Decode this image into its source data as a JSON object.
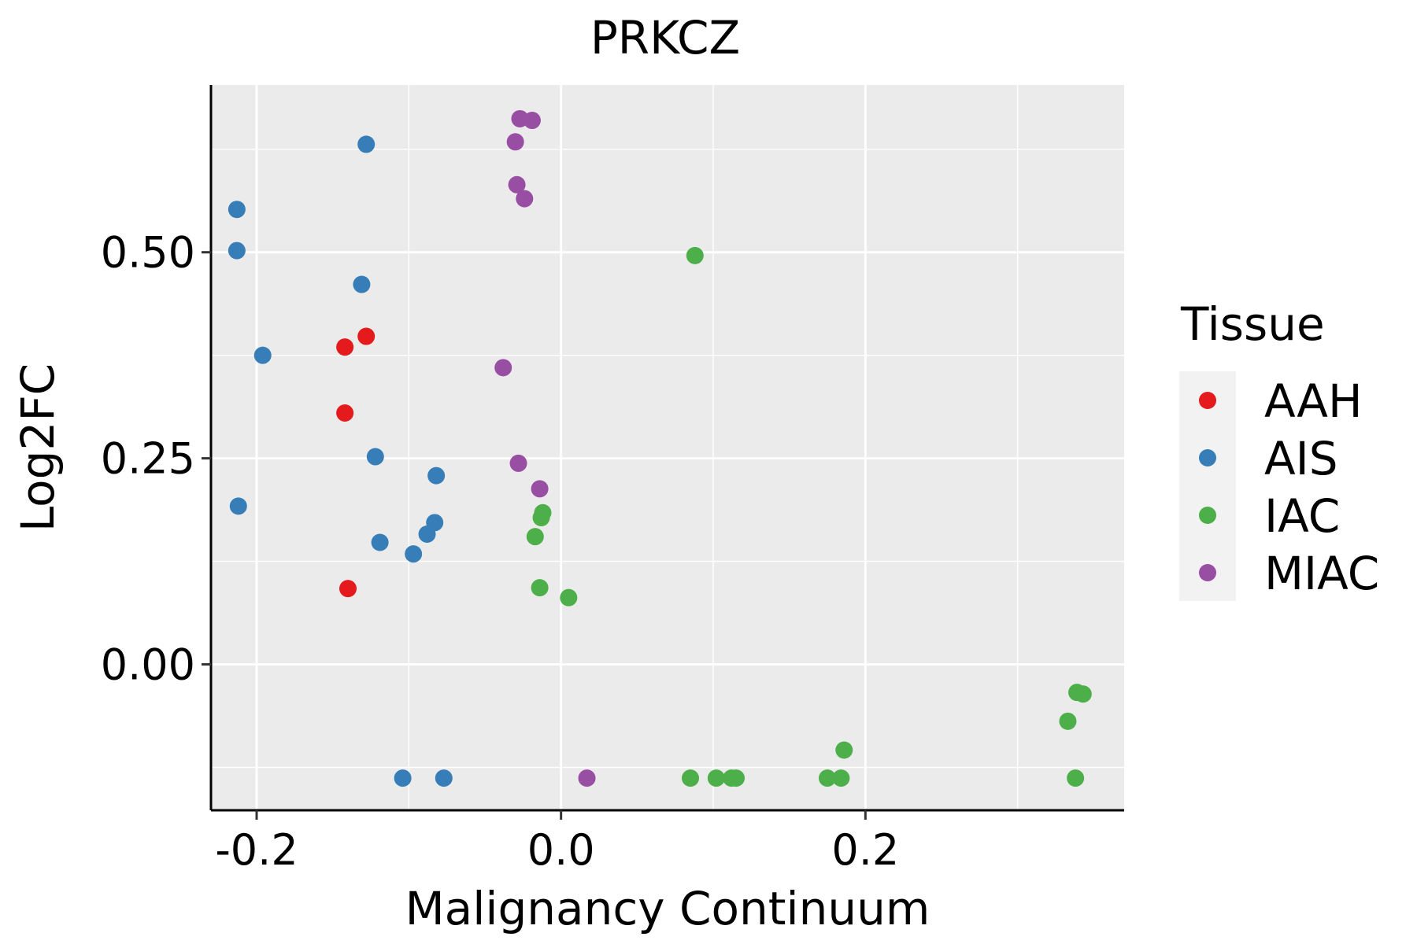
{
  "chart_data": {
    "type": "scatter",
    "title": "PRKCZ",
    "xlabel": "Malignancy Continuum",
    "ylabel": "Log2FC",
    "xlim": [
      -0.23,
      0.37
    ],
    "ylim": [
      -0.177,
      0.703
    ],
    "x_ticks": [
      -0.2,
      0.0,
      0.2
    ],
    "x_tick_labels": [
      "-0.2",
      "0.0",
      "0.2"
    ],
    "y_ticks": [
      0.0,
      0.25,
      0.5
    ],
    "y_tick_labels": [
      "0.00",
      "0.25",
      "0.50"
    ],
    "grid": true,
    "legend": {
      "title": "Tissue",
      "position": "right"
    },
    "colors": {
      "AAH": "#E41A1C",
      "AIS": "#377EB8",
      "IAC": "#4DAF4A",
      "MIAC": "#984EA3"
    },
    "series": [
      {
        "name": "AAH",
        "points": [
          {
            "x": -0.142,
            "y": 0.385
          },
          {
            "x": -0.128,
            "y": 0.398
          },
          {
            "x": -0.142,
            "y": 0.305
          },
          {
            "x": -0.14,
            "y": 0.092
          }
        ]
      },
      {
        "name": "AIS",
        "points": [
          {
            "x": -0.128,
            "y": 0.631
          },
          {
            "x": -0.213,
            "y": 0.552
          },
          {
            "x": -0.213,
            "y": 0.502
          },
          {
            "x": -0.131,
            "y": 0.461
          },
          {
            "x": -0.196,
            "y": 0.375
          },
          {
            "x": -0.122,
            "y": 0.252
          },
          {
            "x": -0.082,
            "y": 0.229
          },
          {
            "x": -0.212,
            "y": 0.192
          },
          {
            "x": -0.083,
            "y": 0.172
          },
          {
            "x": -0.088,
            "y": 0.158
          },
          {
            "x": -0.119,
            "y": 0.148
          },
          {
            "x": -0.097,
            "y": 0.134
          },
          {
            "x": -0.104,
            "y": -0.138
          },
          {
            "x": -0.077,
            "y": -0.138
          }
        ]
      },
      {
        "name": "IAC",
        "points": [
          {
            "x": 0.088,
            "y": 0.496
          },
          {
            "x": -0.012,
            "y": 0.184
          },
          {
            "x": -0.013,
            "y": 0.178
          },
          {
            "x": -0.017,
            "y": 0.155
          },
          {
            "x": -0.014,
            "y": 0.093
          },
          {
            "x": 0.005,
            "y": 0.081
          },
          {
            "x": 0.339,
            "y": -0.034
          },
          {
            "x": 0.343,
            "y": -0.036
          },
          {
            "x": 0.333,
            "y": -0.069
          },
          {
            "x": 0.186,
            "y": -0.104
          },
          {
            "x": 0.085,
            "y": -0.138
          },
          {
            "x": 0.102,
            "y": -0.138
          },
          {
            "x": 0.112,
            "y": -0.138
          },
          {
            "x": 0.115,
            "y": -0.138
          },
          {
            "x": 0.175,
            "y": -0.138
          },
          {
            "x": 0.184,
            "y": -0.138
          },
          {
            "x": 0.338,
            "y": -0.138
          }
        ]
      },
      {
        "name": "MIAC",
        "points": [
          {
            "x": -0.027,
            "y": 0.662
          },
          {
            "x": -0.019,
            "y": 0.66
          },
          {
            "x": -0.03,
            "y": 0.634
          },
          {
            "x": -0.029,
            "y": 0.582
          },
          {
            "x": -0.024,
            "y": 0.565
          },
          {
            "x": -0.038,
            "y": 0.36
          },
          {
            "x": -0.028,
            "y": 0.244
          },
          {
            "x": -0.014,
            "y": 0.213
          },
          {
            "x": 0.017,
            "y": -0.138
          }
        ]
      }
    ]
  }
}
